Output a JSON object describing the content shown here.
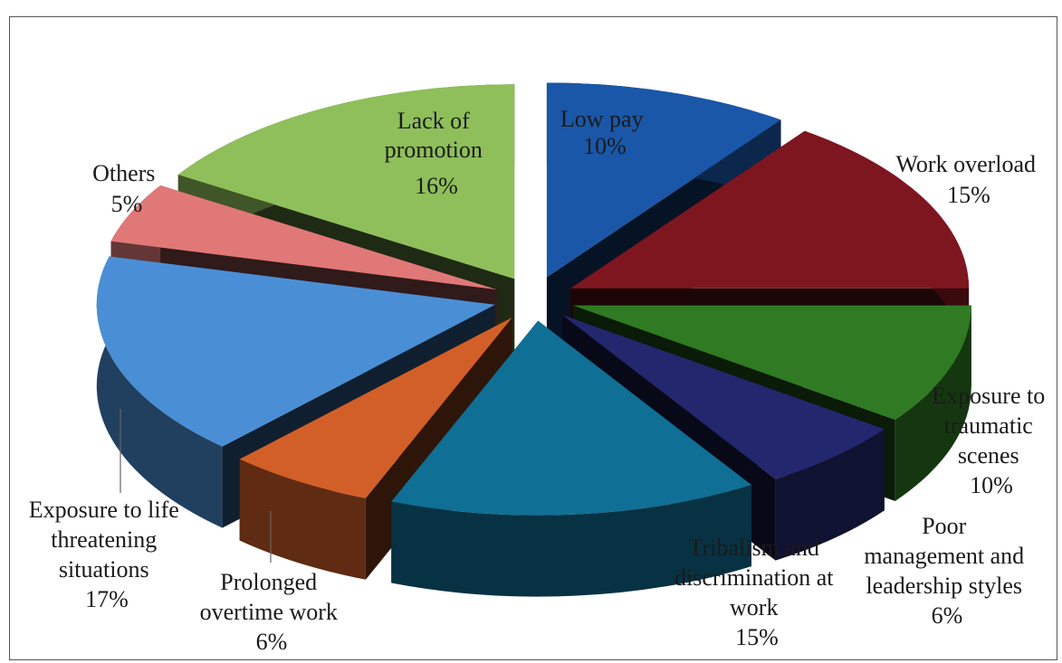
{
  "chart_data": {
    "type": "pie",
    "style": "exploded-3d",
    "title": "",
    "slices": [
      {
        "label": "Low pay",
        "value": 10,
        "pct_label": "10%",
        "color": "#1a57a8"
      },
      {
        "label": "Work overload",
        "value": 15,
        "pct_label": "15%",
        "color": "#7e1620"
      },
      {
        "label": "Exposure to traumatic scenes",
        "value": 10,
        "pct_label": "10%",
        "color": "#2f7a23"
      },
      {
        "label": "Poor management and leadership styles",
        "value": 6,
        "pct_label": "6%",
        "color": "#23276d"
      },
      {
        "label": "Tribalism and discrimination at work",
        "value": 15,
        "pct_label": "15%",
        "color": "#0f6f95"
      },
      {
        "label": "Prolonged overtime work",
        "value": 6,
        "pct_label": "6%",
        "color": "#d35f28"
      },
      {
        "label": "Exposure to life threatening situations",
        "value": 17,
        "pct_label": "17%",
        "color": "#4a8fd6"
      },
      {
        "label": "Others",
        "value": 5,
        "pct_label": "5%",
        "color": "#e07878"
      },
      {
        "label": "Lack of promotion",
        "value": 16,
        "pct_label": "16%",
        "color": "#8fbf5a"
      }
    ],
    "labels": {
      "low_pay": [
        "Low pay",
        "10%"
      ],
      "work_overload": [
        "Work overload",
        "15%"
      ],
      "traumatic": [
        "Exposure to",
        "traumatic",
        "scenes",
        "10%"
      ],
      "poor_mgmt": [
        "Poor",
        "management and",
        "leadership styles",
        "6%"
      ],
      "tribalism": [
        "Tribalism and",
        "discrimination at",
        "work",
        "15%"
      ],
      "overtime": [
        "Prolonged",
        "overtime work",
        "6%"
      ],
      "life_threat": [
        "Exposure to life",
        "threatening",
        "situations",
        "17%"
      ],
      "others": [
        "Others",
        "5%"
      ],
      "promotion": [
        "Lack of",
        "promotion",
        "16%"
      ]
    }
  }
}
